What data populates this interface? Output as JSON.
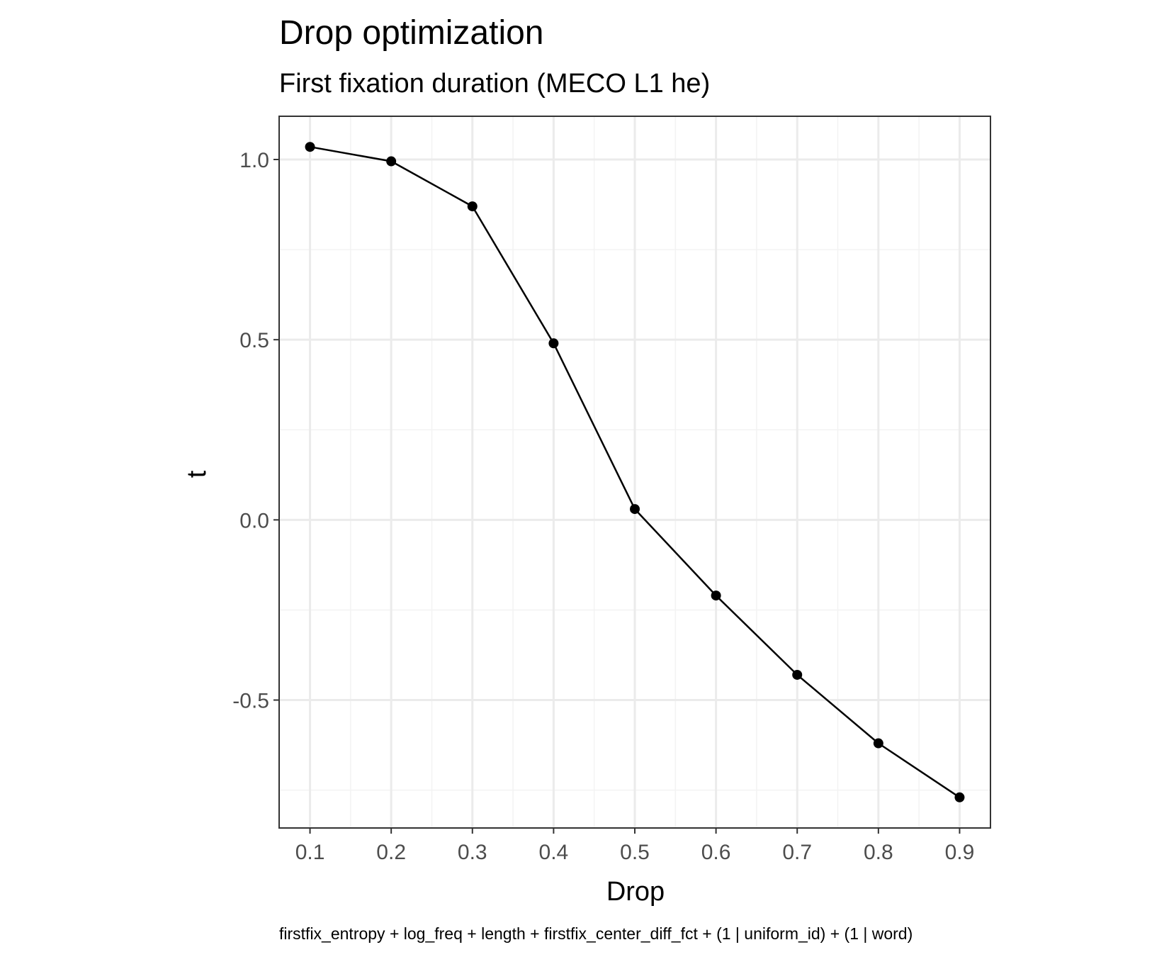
{
  "chart_data": {
    "type": "line",
    "title": "Drop optimization",
    "subtitle": "First fixation duration (MECO L1 he)",
    "xlabel": "Drop",
    "ylabel": "t",
    "caption": "firstfix_entropy + log_freq + length + firstfix_center_diff_fct + (1 | uniform_id) + (1 | word)",
    "x": [
      0.1,
      0.2,
      0.3,
      0.4,
      0.5,
      0.6,
      0.7,
      0.8,
      0.9
    ],
    "series": [
      {
        "values": [
          1.035,
          0.995,
          0.87,
          0.49,
          0.03,
          -0.21,
          -0.43,
          -0.62,
          -0.77
        ]
      }
    ],
    "xlim": [
      0.062,
      0.938
    ],
    "ylim": [
      -0.855,
      1.12
    ],
    "x_ticks": [
      0.1,
      0.2,
      0.3,
      0.4,
      0.5,
      0.6,
      0.7,
      0.8,
      0.9
    ],
    "x_tick_labels": [
      "0.1",
      "0.2",
      "0.3",
      "0.4",
      "0.5",
      "0.6",
      "0.7",
      "0.8",
      "0.9"
    ],
    "x_minor_ticks": [
      0.15,
      0.25,
      0.35,
      0.45,
      0.55,
      0.65,
      0.75,
      0.85
    ],
    "y_ticks": [
      1.0,
      0.5,
      0.0,
      -0.5
    ],
    "y_tick_labels": [
      "1.0",
      "0.5",
      "0.0",
      "-0.5"
    ],
    "y_minor_ticks": [
      0.75,
      0.25,
      -0.25,
      -0.75
    ],
    "grid": true,
    "legend": "none",
    "colors": {
      "line": "#000000",
      "point": "#000000",
      "grid_major": "#ebebeb",
      "grid_minor": "#f3f3f3",
      "panel_border": "#333333",
      "tick_text": "#4d4d4d"
    }
  }
}
